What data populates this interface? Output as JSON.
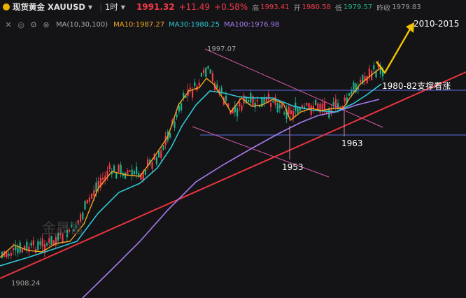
{
  "header": {
    "symbol_title": "现货黄金 XAUUSD",
    "timeframe": "1时",
    "price": "1991.32",
    "change": "+11.49",
    "change_pct": "+0.58%",
    "high_label": "高",
    "high_value": "1993.41",
    "open_label": "开",
    "open_value": "1980.58",
    "low_label": "低",
    "low_value": "1979.57",
    "prev_close_label": "昨收",
    "prev_close_value": "1979.83"
  },
  "indicator": {
    "name": "MA(10,30,100)",
    "ma10": "MA10:1987.27",
    "ma30": "MA30:1980.25",
    "ma100": "MA100:1976.98",
    "icons": [
      "collapse-icon",
      "eye-icon",
      "gear-icon",
      "close-icon"
    ]
  },
  "chart": {
    "high_label": "1997.07",
    "low_label": "1908.24",
    "watermark": "金晟富",
    "annotations": {
      "target": "2010-2015",
      "support": "1980-82支撑看涨",
      "l1963": "1963",
      "l1953": "1953"
    },
    "colors": {
      "up": "#f23a48",
      "down": "#1fb28a",
      "ma10": "#f5a623",
      "ma30": "#2ec7d6",
      "ma100": "#a77cf2",
      "trend_red": "#e8343f",
      "channel_pink": "#d85aa8",
      "support_blue": "#5a6ee8",
      "arrow": "#f2c200"
    }
  }
}
